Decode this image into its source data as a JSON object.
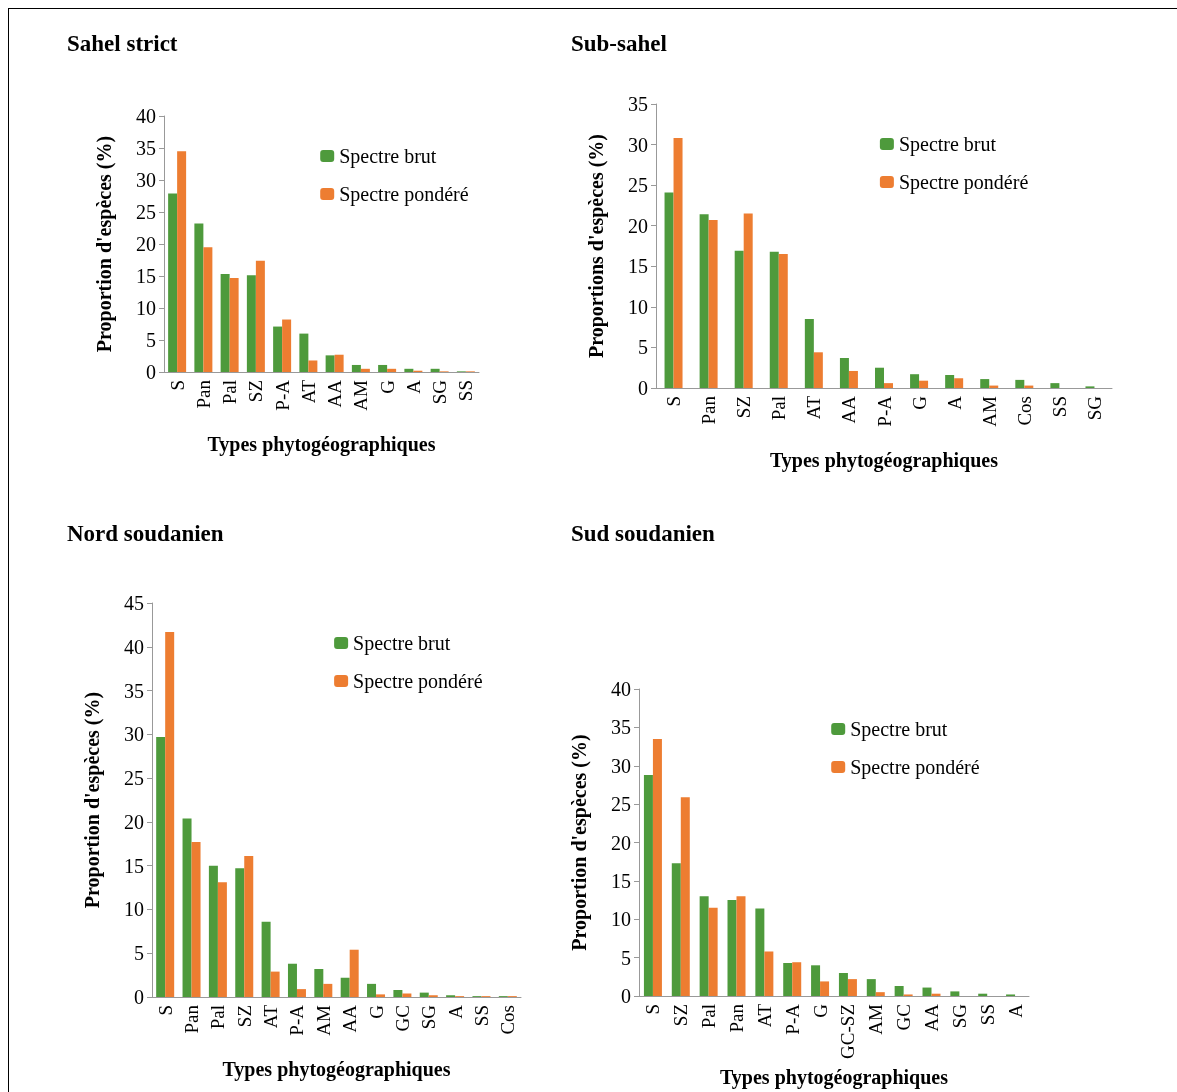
{
  "chart_data": [
    {
      "type": "bar",
      "title": "Sahel strict",
      "xlabel": "Types phytogéographiques",
      "ylabel": "Proportion d'espèces (%)",
      "categories": [
        "S",
        "Pan",
        "Pal",
        "SZ",
        "P-A",
        "AT",
        "AA",
        "AM",
        "G",
        "A",
        "SG",
        "SS"
      ],
      "series": [
        {
          "name": "Spectre brut",
          "color": "#4e9a3c",
          "values": [
            27.9,
            23.2,
            15.3,
            15.1,
            7.1,
            6.0,
            2.6,
            1.1,
            1.1,
            0.5,
            0.5,
            0.1
          ]
        },
        {
          "name": "Spectre pondéré",
          "color": "#ed7d31",
          "values": [
            34.5,
            19.5,
            14.7,
            17.4,
            8.2,
            1.8,
            2.7,
            0.5,
            0.5,
            0.2,
            0.1,
            0.1
          ]
        }
      ],
      "ylim": [
        0,
        40
      ],
      "yticks": [
        0,
        5,
        10,
        15,
        20,
        25,
        30,
        35,
        40
      ],
      "legend": "top right"
    },
    {
      "type": "bar",
      "title": "Sub-sahel",
      "xlabel": "Types phytogéographiques",
      "ylabel": "Proportions d'espèces (%)",
      "categories": [
        "S",
        "Pan",
        "SZ",
        "Pal",
        "AT",
        "AA",
        "P-A",
        "G",
        "A",
        "AM",
        "Cos",
        "SS",
        "SG"
      ],
      "series": [
        {
          "name": "Spectre brut",
          "color": "#4e9a3c",
          "values": [
            24.1,
            21.4,
            16.9,
            16.8,
            8.5,
            3.7,
            2.5,
            1.7,
            1.6,
            1.1,
            1.0,
            0.6,
            0.2
          ]
        },
        {
          "name": "Spectre pondéré",
          "color": "#ed7d31",
          "values": [
            30.8,
            20.7,
            21.5,
            16.5,
            4.4,
            2.1,
            0.6,
            0.9,
            1.2,
            0.3,
            0.3,
            0,
            0
          ]
        }
      ],
      "ylim": [
        0,
        35
      ],
      "yticks": [
        0,
        5,
        10,
        15,
        20,
        25,
        30,
        35
      ],
      "legend": "top right"
    },
    {
      "type": "bar",
      "title": "Nord soudanien",
      "xlabel": "Types phytogéographiques",
      "ylabel": "Proportion d'espèces (%)",
      "categories": [
        "S",
        "Pan",
        "Pal",
        "SZ",
        "AT",
        "P-A",
        "AM",
        "AA",
        "G",
        "GC",
        "SG",
        "A",
        "SS",
        "Cos"
      ],
      "series": [
        {
          "name": "Spectre brut",
          "color": "#4e9a3c",
          "values": [
            29.7,
            20.4,
            15.0,
            14.7,
            8.6,
            3.8,
            3.2,
            2.2,
            1.5,
            0.8,
            0.5,
            0.2,
            0.1,
            0.1
          ]
        },
        {
          "name": "Spectre pondéré",
          "color": "#ed7d31",
          "values": [
            41.7,
            17.7,
            13.1,
            16.1,
            2.9,
            0.9,
            1.5,
            5.4,
            0.3,
            0.4,
            0.2,
            0.1,
            0.1,
            0.1
          ]
        }
      ],
      "ylim": [
        0,
        45
      ],
      "yticks": [
        0,
        5,
        10,
        15,
        20,
        25,
        30,
        35,
        40,
        45
      ],
      "legend": "top right"
    },
    {
      "type": "bar",
      "title": "Sud soudanien",
      "xlabel": "Types phytogéographiques",
      "ylabel": "Proportion d'espèces (%)",
      "categories": [
        "S",
        "SZ",
        "Pal",
        "Pan",
        "AT",
        "P-A",
        "G",
        "GC-SZ",
        "AM",
        "GC",
        "AA",
        "SG",
        "SS",
        "A"
      ],
      "series": [
        {
          "name": "Spectre brut",
          "color": "#4e9a3c",
          "values": [
            28.8,
            17.3,
            13.0,
            12.5,
            11.4,
            4.3,
            4.0,
            3.0,
            2.2,
            1.3,
            1.1,
            0.6,
            0.3,
            0.2
          ]
        },
        {
          "name": "Spectre pondéré",
          "color": "#ed7d31",
          "values": [
            33.5,
            25.9,
            11.5,
            13.0,
            5.8,
            4.4,
            1.9,
            2.2,
            0.5,
            0.2,
            0.3,
            0,
            0,
            0
          ]
        }
      ],
      "ylim": [
        0,
        40
      ],
      "yticks": [
        0,
        5,
        10,
        15,
        20,
        25,
        30,
        35,
        40
      ],
      "legend": "top right"
    }
  ]
}
